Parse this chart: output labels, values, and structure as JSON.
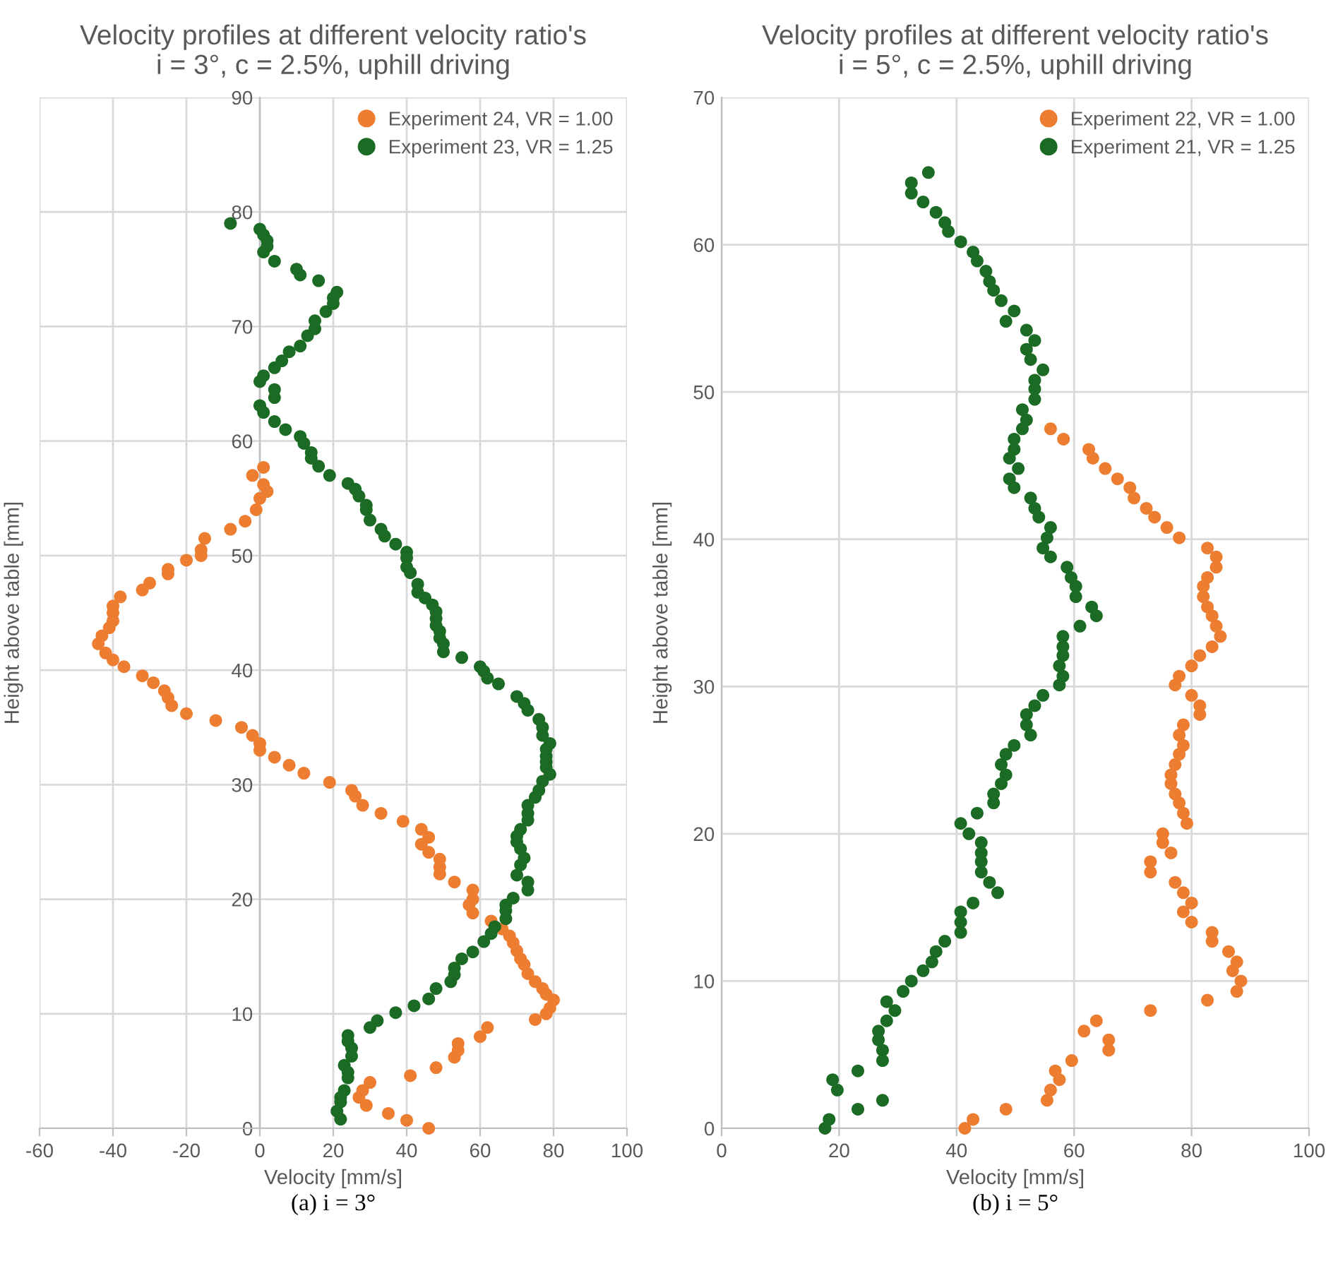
{
  "chart_data": [
    {
      "type": "scatter",
      "title": "Velocity profiles at different velocity ratio's\ni = 3°, c = 2.5%, uphill driving",
      "xlabel": "Velocity [mm/s]",
      "ylabel": "Height above table [mm]",
      "xlim": [
        -60,
        100
      ],
      "xticks": [
        -60,
        -40,
        -20,
        0,
        20,
        40,
        60,
        80,
        100
      ],
      "ylim": [
        0,
        90
      ],
      "yticks": [
        0,
        10,
        20,
        30,
        40,
        50,
        60,
        70,
        80,
        90
      ],
      "grid": true,
      "legend": "top right",
      "marker": "circle",
      "annotations": [
        "(a) i = 3°"
      ],
      "series": [
        {
          "name": "Experiment 24, VR = 1.00",
          "color": "#ed7d31",
          "x": [
            1,
            -2,
            1,
            2,
            0,
            -1,
            -4,
            -8,
            -15,
            -16,
            -16,
            -20,
            -25,
            -25,
            -30,
            -32,
            -38,
            -40,
            -40,
            -40,
            -41,
            -43,
            -44,
            -42,
            -40,
            -37,
            -32,
            -29,
            -26,
            -25,
            -24,
            -20,
            -12,
            -5,
            -2,
            0,
            0,
            4,
            8,
            12,
            19,
            25,
            26,
            28,
            33,
            39,
            44,
            46,
            44,
            46,
            49,
            49,
            49,
            53,
            58,
            58,
            57,
            58,
            63,
            66,
            68,
            69,
            70,
            71,
            72,
            73,
            75,
            77,
            78,
            80,
            79,
            78,
            75,
            62,
            60,
            54,
            54,
            53,
            48,
            41,
            30,
            28,
            27,
            29,
            35,
            40,
            46
          ],
          "values": [
            57.7,
            57,
            56.2,
            55.6,
            55,
            54,
            53,
            52.3,
            51.5,
            50.5,
            50,
            49.6,
            48.8,
            48.4,
            47.6,
            47,
            46.4,
            45.6,
            45,
            44.3,
            43.7,
            43,
            42.3,
            41.5,
            40.9,
            40.3,
            39.5,
            38.9,
            38.2,
            37.6,
            36.9,
            36.2,
            35.6,
            35,
            34.3,
            33.6,
            33,
            32.4,
            31.7,
            31,
            30.2,
            29.5,
            29,
            28.2,
            27.5,
            26.8,
            26.1,
            25.4,
            24.8,
            24.1,
            23.5,
            22.8,
            22.2,
            21.5,
            20.8,
            20,
            19.5,
            18.8,
            18.1,
            17.4,
            16.8,
            16.2,
            15.5,
            14.8,
            14.3,
            13.5,
            12.8,
            12.2,
            11.7,
            11.2,
            10.5,
            10,
            9.5,
            8.8,
            8,
            7.4,
            6.8,
            6.2,
            5.3,
            4.6,
            4,
            3.3,
            2.7,
            2,
            1.3,
            0.7,
            0
          ]
        },
        {
          "name": "Experiment 23, VR = 1.25",
          "color": "#1b6b24",
          "x": [
            -8,
            0,
            1,
            2,
            2,
            1,
            4,
            10,
            11,
            16,
            21,
            20,
            20,
            18,
            15,
            15,
            13,
            11,
            8,
            6,
            4,
            1,
            0,
            4,
            4,
            0,
            1,
            4,
            7,
            11,
            12,
            14,
            14,
            16,
            19,
            24,
            26,
            27,
            29,
            29,
            30,
            33,
            34,
            37,
            40,
            40,
            40,
            41,
            43,
            43,
            45,
            47,
            48,
            48,
            48,
            49,
            49,
            50,
            50,
            55,
            60,
            61,
            62,
            65,
            70,
            72,
            73,
            76,
            77,
            77,
            79,
            78,
            78,
            78,
            78,
            79,
            77,
            76,
            75,
            73,
            73,
            73,
            71,
            70,
            70,
            71,
            72,
            71,
            70,
            73,
            73,
            69,
            67,
            67,
            67,
            64,
            63,
            61,
            58,
            55,
            53,
            53,
            52,
            48,
            46,
            42,
            37,
            32,
            30,
            24,
            24,
            25,
            25,
            23,
            24,
            24,
            23,
            22,
            22,
            21,
            22
          ],
          "values": [
            79,
            78.5,
            78,
            77.5,
            77,
            76.5,
            75.7,
            75,
            74.5,
            74,
            73,
            72.5,
            72,
            71.3,
            70.5,
            69.8,
            69.2,
            68.3,
            67.8,
            67,
            66.4,
            65.7,
            65.2,
            64.5,
            63.8,
            63.1,
            62.5,
            61.7,
            61,
            60.4,
            59.8,
            59,
            58.5,
            57.8,
            57,
            56.3,
            55.8,
            55.2,
            54.4,
            54,
            53.1,
            52.3,
            51.7,
            51,
            50.3,
            49.8,
            49,
            48.5,
            47.5,
            46.8,
            46.3,
            45.7,
            45.1,
            44.5,
            43.9,
            43.4,
            42.8,
            42.3,
            41.6,
            41.1,
            40.3,
            39.9,
            39.3,
            38.8,
            37.7,
            37.1,
            36.5,
            35.7,
            35,
            34.3,
            33.6,
            33.1,
            32.5,
            32,
            31.5,
            30.9,
            30.3,
            29.5,
            28.9,
            28.2,
            27.5,
            26.9,
            26.1,
            25.5,
            25,
            24.4,
            23.6,
            23,
            22.1,
            21.5,
            20.8,
            20.1,
            19.5,
            19,
            18.3,
            17.6,
            17,
            16.3,
            15.4,
            14.8,
            14,
            13.4,
            12.8,
            12.2,
            11.3,
            10.7,
            10.1,
            9.4,
            8.8,
            8.1,
            7.6,
            7,
            6.3,
            5.5,
            4.9,
            4.4,
            3.3,
            2.7,
            2.3,
            1.5,
            0.8
          ]
        }
      ]
    },
    {
      "type": "scatter",
      "title": "Velocity profiles at different velocity ratio's\ni = 5°, c = 2.5%, uphill driving",
      "xlabel": "Velocity [mm/s]",
      "ylabel": "Height above table [mm]",
      "xlim": [
        0,
        100
      ],
      "xticks": [
        0,
        20,
        40,
        60,
        80,
        100
      ],
      "ylim": [
        0,
        70
      ],
      "yticks": [
        0,
        10,
        20,
        30,
        40,
        50,
        60,
        70
      ],
      "grid": true,
      "legend": "top right",
      "marker": "circle",
      "annotations": [
        "(b) i = 5°"
      ],
      "series": [
        {
          "name": "Experiment 22, VR = 1.00",
          "color": "#ed7d31",
          "x": [
            56,
            58.2,
            62.5,
            63.2,
            65.3,
            67.4,
            69.5,
            70.2,
            72.3,
            73.7,
            75.8,
            77.9,
            82.7,
            84.2,
            84.2,
            82.7,
            82,
            82,
            82.7,
            83.5,
            84.2,
            84.9,
            83.5,
            81.4,
            80,
            77.9,
            77.2,
            80,
            81.4,
            81.4,
            78.6,
            77.9,
            78.6,
            77.9,
            77.2,
            76.5,
            76.5,
            77.2,
            77.9,
            78.6,
            79.2,
            75.1,
            75.1,
            76.5,
            73,
            73,
            77.2,
            78.6,
            80,
            78.6,
            80,
            83.5,
            83.5,
            86.3,
            87.7,
            87,
            88.4,
            87.7,
            82.7,
            73,
            63.8,
            61.7,
            65.9,
            65.9,
            59.6,
            56.8,
            57.5,
            56,
            55.4,
            48.4,
            42.8,
            41.4
          ],
          "values": [
            47.5,
            46.8,
            46.1,
            45.5,
            44.8,
            44.1,
            43.5,
            42.8,
            42.1,
            41.5,
            40.8,
            40.1,
            39.4,
            38.8,
            38.1,
            37.4,
            36.8,
            36.1,
            35.4,
            34.8,
            34.1,
            33.4,
            32.7,
            32.1,
            31.4,
            30.7,
            30.1,
            29.4,
            28.7,
            28.1,
            27.4,
            26.7,
            26,
            25.4,
            24.7,
            24,
            23.4,
            22.7,
            22.1,
            21.4,
            20.7,
            20,
            19.4,
            18.7,
            18.1,
            17.4,
            16.7,
            16,
            15.3,
            14.7,
            14,
            13.3,
            12.7,
            12,
            11.3,
            10.7,
            10,
            9.3,
            8.7,
            8,
            7.3,
            6.6,
            6,
            5.3,
            4.6,
            3.9,
            3.3,
            2.6,
            1.9,
            1.3,
            0.6,
            0
          ]
        },
        {
          "name": "Experiment 21, VR = 1.25",
          "color": "#1b6b24",
          "x": [
            35.2,
            32.3,
            32.3,
            34.3,
            36.5,
            38,
            38.6,
            40.7,
            42.8,
            43.5,
            45,
            45.6,
            46.3,
            47.6,
            49.8,
            48.4,
            51.9,
            53.3,
            51.9,
            52.6,
            54.7,
            53.3,
            53.3,
            53.3,
            51.2,
            51.9,
            51.2,
            49.8,
            49.8,
            49,
            50.5,
            49,
            49.8,
            52.6,
            53.3,
            54,
            56,
            55.4,
            54.7,
            56,
            58.8,
            59.5,
            60.3,
            60.3,
            63,
            63.8,
            61,
            58.1,
            58.1,
            58.1,
            57.5,
            58.1,
            57.5,
            54.7,
            53.3,
            51.9,
            51.9,
            52.6,
            49.8,
            48.4,
            47.6,
            48.4,
            47.6,
            46.3,
            46.3,
            43.5,
            40.7,
            42.1,
            44.2,
            44.2,
            44.2,
            44.2,
            45.6,
            47,
            42.8,
            40.7,
            40.7,
            40.7,
            38,
            36.5,
            35.8,
            34.3,
            32.3,
            30.9,
            28.1,
            29.5,
            28.1,
            26.7,
            26.7,
            27.4,
            27.4,
            23.2,
            18.9,
            19.7,
            27.4,
            23.2,
            18.3,
            17.6
          ],
          "values": [
            64.9,
            64.2,
            63.5,
            62.9,
            62.2,
            61.5,
            60.9,
            60.2,
            59.5,
            58.9,
            58.2,
            57.5,
            56.9,
            56.2,
            55.5,
            54.8,
            54.2,
            53.5,
            52.9,
            52.2,
            51.5,
            50.8,
            50.2,
            49.5,
            48.8,
            48.1,
            47.5,
            46.8,
            46.1,
            45.5,
            44.8,
            44.1,
            43.5,
            42.8,
            42.1,
            41.5,
            40.8,
            40.1,
            39.4,
            38.8,
            38.1,
            37.4,
            36.8,
            36.1,
            35.4,
            34.8,
            34.1,
            33.4,
            32.7,
            32.1,
            31.4,
            30.7,
            30.1,
            29.4,
            28.7,
            28.1,
            27.4,
            26.7,
            26,
            25.4,
            24.7,
            24,
            23.4,
            22.7,
            22.1,
            21.4,
            20.7,
            20,
            19.4,
            18.7,
            18.1,
            17.4,
            16.7,
            16,
            15.3,
            14.7,
            14,
            13.3,
            12.7,
            12,
            11.3,
            10.7,
            10,
            9.3,
            8.6,
            8,
            7.3,
            6.6,
            6,
            5.3,
            4.6,
            3.9,
            3.3,
            2.6,
            1.9,
            1.3,
            0.6,
            0
          ]
        }
      ]
    }
  ]
}
